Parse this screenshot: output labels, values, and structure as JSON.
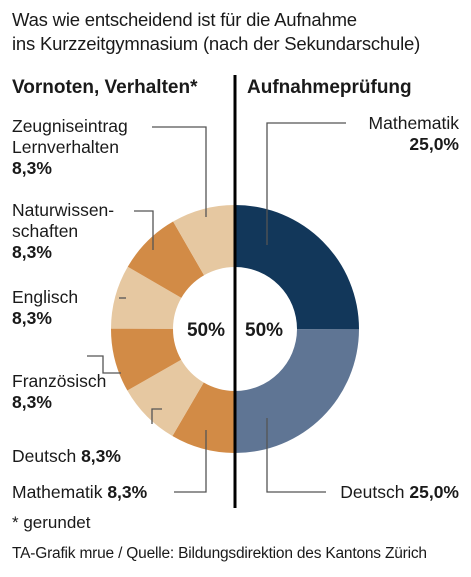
{
  "title_line1": "Was wie entscheidend ist für die Aufnahme",
  "title_line2": "ins Kurzzeitgymnasium (nach der Sekundarschule)",
  "left_heading": "Vornoten, Verhalten*",
  "right_heading": "Aufnahmeprüfung",
  "center_left_label": "50%",
  "center_right_label": "50%",
  "footnote": "* gerundet",
  "source": "TA-Grafik mrue / Quelle: Bildungsdirektion des Kantons Zürich",
  "chart_data": {
    "type": "donut",
    "title": "Was wie entscheidend ist für die Aufnahme ins Kurzzeitgymnasium (nach der Sekundarschule)",
    "groups": [
      {
        "name": "Vornoten, Verhalten*",
        "total": 50
      },
      {
        "name": "Aufnahmeprüfung",
        "total": 50
      }
    ],
    "slices": [
      {
        "group": "Aufnahmeprüfung",
        "label": "Mathematik",
        "value": 25.0,
        "value_label": "25,0%",
        "color": "#12375a"
      },
      {
        "group": "Aufnahmeprüfung",
        "label": "Deutsch",
        "value": 25.0,
        "value_label": "25,0%",
        "color": "#5f7594"
      },
      {
        "group": "Vornoten, Verhalten*",
        "label": "Mathematik",
        "value": 8.3,
        "value_label": "8,3%",
        "color": "#d28b46"
      },
      {
        "group": "Vornoten, Verhalten*",
        "label": "Deutsch",
        "value": 8.3,
        "value_label": "8,3%",
        "color": "#e6c8a1"
      },
      {
        "group": "Vornoten, Verhalten*",
        "label": "Französisch",
        "value": 8.3,
        "value_label": "8,3%",
        "color": "#d28b46"
      },
      {
        "group": "Vornoten, Verhalten*",
        "label": "Englisch",
        "value": 8.3,
        "value_label": "8,3%",
        "color": "#e6c8a1"
      },
      {
        "group": "Vornoten, Verhalten*",
        "label": "Naturwissen-schaften",
        "value": 8.3,
        "value_label": "8,3%",
        "color": "#d28b46"
      },
      {
        "group": "Vornoten, Verhalten*",
        "label": "Zeugniseintrag Lernverhalten",
        "value": 8.3,
        "value_label": "8,3%",
        "color": "#e6c8a1"
      }
    ],
    "divider_color": "#000000"
  },
  "labels": {
    "zeugnis_line1": "Zeugniseintrag",
    "zeugnis_line2": "Lernverhalten",
    "zeugnis_value": "8,3%",
    "natur_line1": "Naturwissen-",
    "natur_line2": "schaften",
    "natur_value": "8,3%",
    "englisch": "Englisch",
    "englisch_value": "8,3%",
    "franz": "Französisch",
    "franz_value": "8,3%",
    "deutsch_left": "Deutsch",
    "deutsch_left_value": "8,3%",
    "mathe_left": "Mathematik",
    "mathe_left_value": "8,3%",
    "mathe_right": "Mathematik",
    "mathe_right_value": "25,0%",
    "deutsch_right": "Deutsch",
    "deutsch_right_value": "25,0%"
  }
}
